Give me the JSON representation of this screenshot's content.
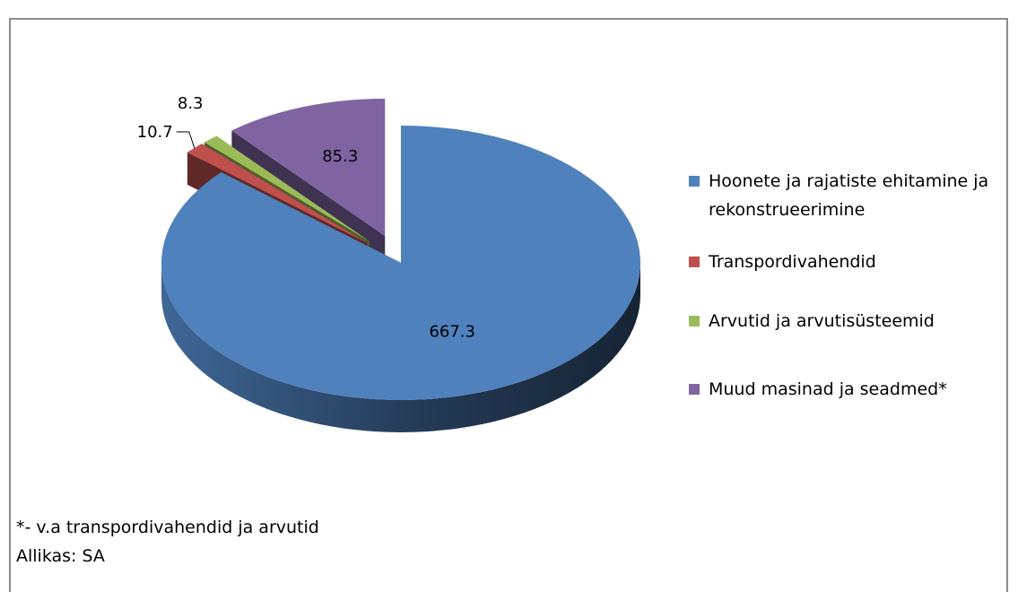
{
  "title": "",
  "footnote": {
    "note": "*- v.a transpordivahendid ja arvutid",
    "source": "Allikas: SA"
  },
  "chart_data": {
    "type": "pie",
    "style": "3d-exploded",
    "legend_position": "right",
    "series": [
      {
        "label": "Hoonete ja rajatiste ehitamine ja rekonstrueerimine",
        "value": 667.3,
        "display": "667.3",
        "color": "#4f81bd"
      },
      {
        "label": "Transpordivahendid",
        "value": 10.7,
        "display": "10.7",
        "color": "#c0504d"
      },
      {
        "label": "Arvutid ja arvutisüsteemid",
        "value": 8.3,
        "display": "8.3",
        "color": "#9bbb59"
      },
      {
        "label": "Muud masinad ja seadmed*",
        "value": 85.3,
        "display": "85.3",
        "color": "#8064a2"
      }
    ]
  }
}
